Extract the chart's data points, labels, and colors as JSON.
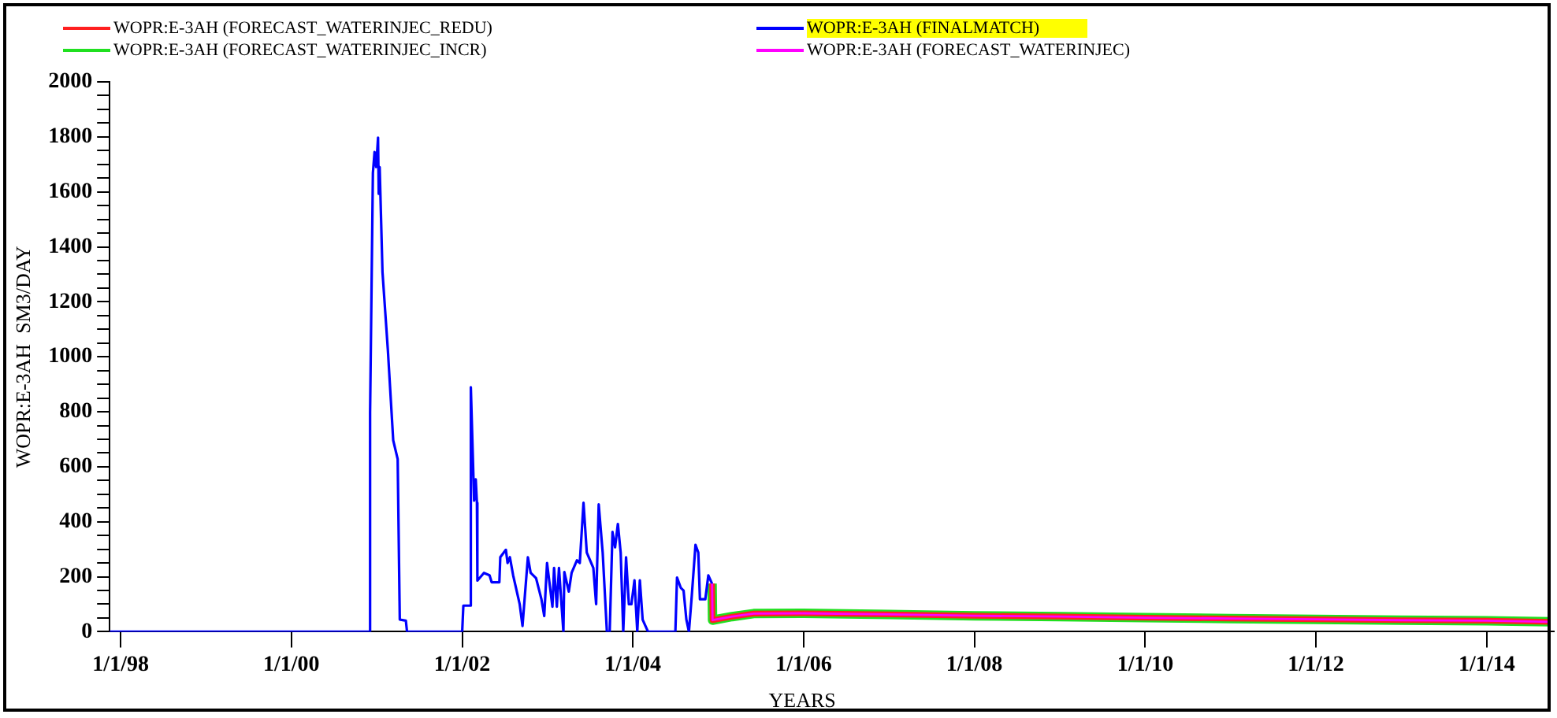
{
  "chart_data": {
    "type": "line",
    "xlabel": "YEARS",
    "ylabel": "WOPR:E-3AH  SM3/DAY",
    "legend": "top",
    "grid": false,
    "xlim": [
      "1997-11-15",
      "2014-10-15"
    ],
    "xticks": [
      {
        "value": "1998-01-01",
        "label": "1/1/98"
      },
      {
        "value": "2000-01-01",
        "label": "1/1/00"
      },
      {
        "value": "2002-01-01",
        "label": "1/1/02"
      },
      {
        "value": "2004-01-01",
        "label": "1/1/04"
      },
      {
        "value": "2006-01-01",
        "label": "1/1/06"
      },
      {
        "value": "2008-01-01",
        "label": "1/1/08"
      },
      {
        "value": "2010-01-01",
        "label": "1/1/10"
      },
      {
        "value": "2012-01-01",
        "label": "1/1/12"
      },
      {
        "value": "2014-01-01",
        "label": "1/1/14"
      }
    ],
    "ylim": [
      0,
      2000
    ],
    "yticks": [
      0,
      {
        "value": 50,
        "label": null
      },
      {
        "value": 100,
        "label": null
      },
      {
        "value": 150,
        "label": null
      },
      200,
      {
        "value": 250,
        "label": null
      },
      {
        "value": 300,
        "label": null
      },
      {
        "value": 350,
        "label": null
      },
      400,
      {
        "value": 450,
        "label": null
      },
      {
        "value": 500,
        "label": null
      },
      {
        "value": 550,
        "label": null
      },
      600,
      {
        "value": 650,
        "label": null
      },
      {
        "value": 700,
        "label": null
      },
      {
        "value": 750,
        "label": null
      },
      800,
      {
        "value": 850,
        "label": null
      },
      {
        "value": 900,
        "label": null
      },
      {
        "value": 950,
        "label": null
      },
      1000,
      {
        "value": 1050,
        "label": null
      },
      {
        "value": 1100,
        "label": null
      },
      {
        "value": 1150,
        "label": null
      },
      1200,
      {
        "value": 1250,
        "label": null
      },
      {
        "value": 1300,
        "label": null
      },
      {
        "value": 1350,
        "label": null
      },
      1400,
      {
        "value": 1450,
        "label": null
      },
      {
        "value": 1500,
        "label": null
      },
      {
        "value": 1550,
        "label": null
      },
      1600,
      {
        "value": 1650,
        "label": null
      },
      {
        "value": 1700,
        "label": null
      },
      {
        "value": 1750,
        "label": null
      },
      1800,
      {
        "value": 1850,
        "label": null
      },
      {
        "value": 1900,
        "label": null
      },
      {
        "value": 1950,
        "label": null
      },
      2000
    ],
    "series": [
      {
        "name": "WOPR:E-3AH (FORECAST_WATERINJEC_REDU)",
        "color": "#ff2020",
        "x": [
          "2004-12-05",
          "2004-12-07",
          "2005-03-01",
          "2005-06-01",
          "2006-01-01",
          "2007-01-01",
          "2008-01-01",
          "2009-01-01",
          "2010-01-01",
          "2011-01-01",
          "2012-01-01",
          "2013-01-01",
          "2014-01-01",
          "2014-10-01"
        ],
        "values": [
          175,
          42,
          55,
          66,
          67,
          63,
          58,
          55,
          51,
          48,
          45,
          42,
          40,
          36
        ]
      },
      {
        "name": "WOPR:E-3AH (FINALMATCH)",
        "color": "#0000ff",
        "x": [
          "1997-11-15",
          "2000-12-02",
          "2000-12-03",
          "2000-12-15",
          "2000-12-22",
          "2000-12-29",
          "2001-01-06",
          "2001-01-09",
          "2001-01-13",
          "2001-01-25",
          "2001-02-17",
          "2001-03-12",
          "2001-03-31",
          "2001-04-09",
          "2001-05-05",
          "2001-05-10",
          "2002-01-01",
          "2002-01-06",
          "2002-02-05",
          "2002-02-07",
          "2002-02-21",
          "2002-02-28",
          "2002-03-05",
          "2002-03-07",
          "2002-04-04",
          "2002-04-28",
          "2002-05-07",
          "2002-06-09",
          "2002-06-13",
          "2002-07-07",
          "2002-07-14",
          "2002-07-24",
          "2002-08-07",
          "2002-09-04",
          "2002-09-16",
          "2002-10-09",
          "2002-10-21",
          "2002-11-13",
          "2002-12-06",
          "2002-12-18",
          "2002-12-30",
          "2003-01-22",
          "2003-01-29",
          "2003-02-10",
          "2003-02-19",
          "2003-03-10",
          "2003-03-14",
          "2003-04-02",
          "2003-04-14",
          "2003-05-07",
          "2003-05-19",
          "2003-06-04",
          "2003-06-18",
          "2003-07-16",
          "2003-07-28",
          "2003-08-08",
          "2003-08-25",
          "2003-09-12",
          "2003-09-24",
          "2003-10-06",
          "2003-10-17",
          "2003-10-29",
          "2003-11-10",
          "2003-11-21",
          "2003-12-03",
          "2003-12-15",
          "2003-12-26",
          "2004-01-08",
          "2004-01-20",
          "2004-01-31",
          "2004-02-12",
          "2004-03-06",
          "2004-07-01",
          "2004-07-08",
          "2004-07-24",
          "2004-08-05",
          "2004-08-17",
          "2004-08-28",
          "2004-09-09",
          "2004-09-25",
          "2004-10-07",
          "2004-10-14",
          "2004-11-06",
          "2004-11-19",
          "2004-12-05"
        ],
        "values": [
          0,
          0,
          798,
          1669,
          1745,
          1690,
          1797,
          1593,
          1690,
          1309,
          1025,
          696,
          628,
          44,
          40,
          0,
          0,
          95,
          95,
          889,
          477,
          554,
          469,
          186,
          214,
          205,
          180,
          180,
          271,
          298,
          250,
          271,
          205,
          100,
          21,
          271,
          214,
          195,
          118,
          57,
          250,
          91,
          232,
          91,
          232,
          0,
          217,
          146,
          214,
          260,
          250,
          469,
          288,
          232,
          100,
          463,
          288,
          0,
          0,
          363,
          307,
          392,
          288,
          0,
          271,
          100,
          100,
          187,
          0,
          187,
          44,
          0,
          0,
          197,
          160,
          150,
          44,
          0,
          129,
          316,
          288,
          118,
          118,
          205,
          175
        ]
      },
      {
        "name": "WOPR:E-3AH (FORECAST_WATERINJEC_INCR)",
        "color": "#20e020",
        "x": [
          "2004-12-05",
          "2004-12-07",
          "2005-03-01",
          "2005-06-01",
          "2006-01-01",
          "2007-01-01",
          "2008-01-01",
          "2009-01-01",
          "2010-01-01",
          "2011-01-01",
          "2012-01-01",
          "2013-01-01",
          "2014-01-01",
          "2014-10-01"
        ],
        "values": [
          175,
          42,
          55,
          66,
          67,
          63,
          58,
          55,
          51,
          48,
          45,
          42,
          40,
          36
        ]
      },
      {
        "name": "WOPR:E-3AH (FORECAST_WATERINJEC)",
        "color": "#ff00ff",
        "x": [
          "2004-12-05",
          "2004-12-07",
          "2005-03-01",
          "2005-06-01",
          "2006-01-01",
          "2007-01-01",
          "2008-01-01",
          "2009-01-01",
          "2010-01-01",
          "2011-01-01",
          "2012-01-01",
          "2013-01-01",
          "2014-01-01",
          "2014-10-01"
        ],
        "values": [
          175,
          42,
          55,
          66,
          67,
          63,
          58,
          55,
          51,
          48,
          45,
          42,
          40,
          36
        ]
      }
    ]
  }
}
